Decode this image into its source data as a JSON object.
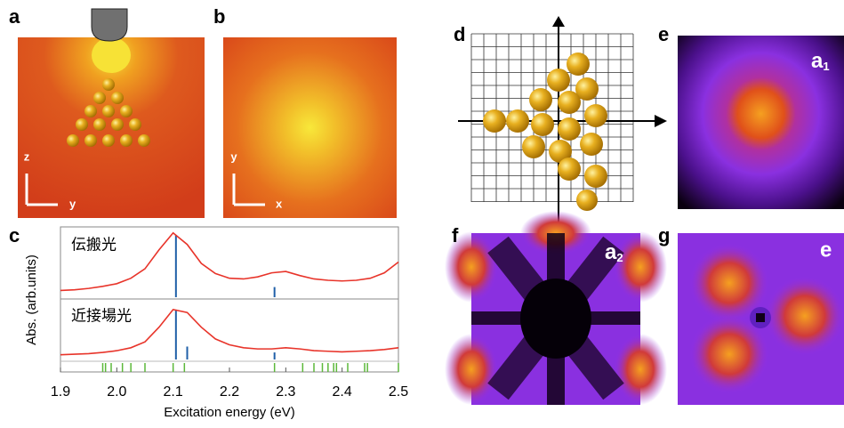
{
  "panels": {
    "a": {
      "label": "a",
      "axis_v": "z",
      "axis_h": "y"
    },
    "b": {
      "label": "b",
      "axis_v": "y",
      "axis_h": "x"
    },
    "c": {
      "label": "c"
    },
    "d": {
      "label": "d"
    },
    "e": {
      "label": "e",
      "tag": {
        "main": "a",
        "sub": "1"
      }
    },
    "f": {
      "label": "f",
      "tag": {
        "main": "a",
        "sub": "2"
      }
    },
    "g": {
      "label": "g",
      "tag": {
        "main": "e"
      }
    }
  },
  "chart_data": {
    "type": "line",
    "xlabel": "Excitation energy (eV)",
    "ylabel": "Abs. (arb.units)",
    "xlim": [
      1.9,
      2.5
    ],
    "xticks": [
      1.9,
      {
        "value": 2,
        "label": "2.0"
      },
      2.1,
      2.2,
      2.3,
      2.4,
      2.5
    ],
    "x": [
      1.9,
      1.925,
      1.95,
      1.975,
      2,
      2.025,
      2.05,
      2.075,
      2.1,
      2.125,
      2.15,
      2.175,
      2.2,
      2.225,
      2.25,
      2.275,
      2.3,
      2.325,
      2.35,
      2.375,
      2.4,
      2.425,
      2.45,
      2.475,
      2.5
    ],
    "subplots": [
      {
        "name": "伝搬光",
        "ylim": [
          0,
          1
        ],
        "curve": {
          "color": "#e8342a",
          "values": [
            0.1,
            0.11,
            0.13,
            0.16,
            0.2,
            0.28,
            0.42,
            0.7,
            0.95,
            0.78,
            0.5,
            0.35,
            0.28,
            0.27,
            0.3,
            0.36,
            0.38,
            0.32,
            0.27,
            0.25,
            0.24,
            0.25,
            0.28,
            0.36,
            0.52
          ]
        },
        "sticks": {
          "color": "#1f5fa8",
          "x": [
            2.105,
            2.28
          ],
          "values": [
            0.92,
            0.15
          ]
        }
      },
      {
        "name": "近接場光",
        "ylim": [
          0,
          1
        ],
        "curve": {
          "color": "#e8342a",
          "values": [
            0.08,
            0.09,
            0.1,
            0.12,
            0.15,
            0.2,
            0.3,
            0.55,
            0.85,
            0.8,
            0.55,
            0.35,
            0.25,
            0.2,
            0.18,
            0.18,
            0.2,
            0.18,
            0.15,
            0.14,
            0.13,
            0.14,
            0.15,
            0.17,
            0.2
          ]
        },
        "sticks": {
          "color": "#1f5fa8",
          "x": [
            2.105,
            2.125,
            2.28
          ],
          "values": [
            0.85,
            0.22,
            0.12
          ]
        }
      }
    ],
    "dark_states": {
      "color": "#5cb83a",
      "x": [
        1.975,
        1.98,
        1.99,
        2.01,
        2.025,
        2.05,
        2.1,
        2.12,
        2.28,
        2.33,
        2.35,
        2.365,
        2.375,
        2.385,
        2.39,
        2.41,
        2.44,
        2.445,
        2.5
      ]
    }
  }
}
